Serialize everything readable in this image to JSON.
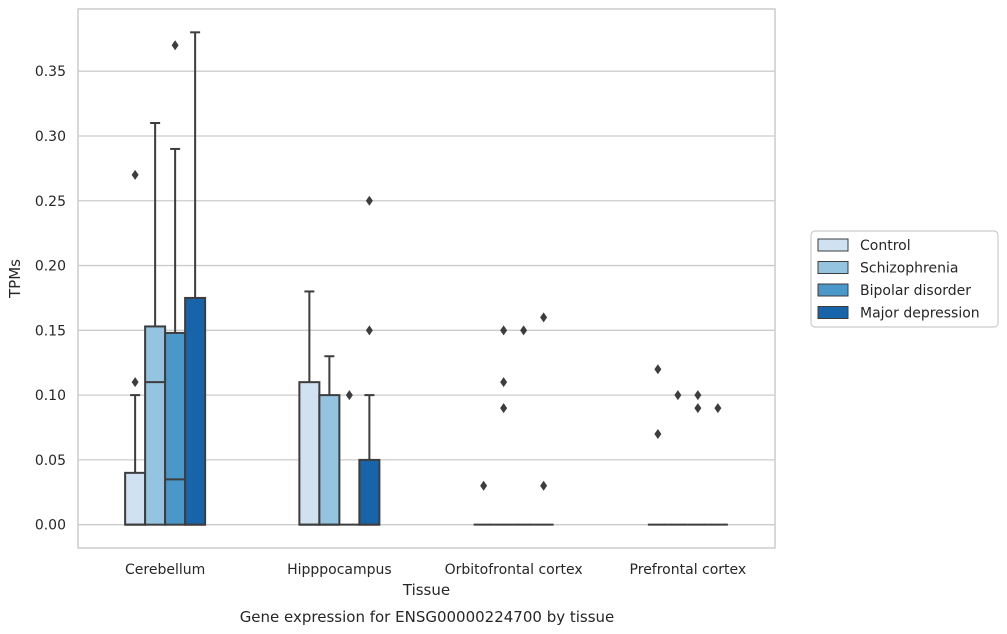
{
  "caption": "Gene expression for ENSG00000224700 by tissue",
  "chart_data": {
    "type": "box",
    "title": "",
    "xlabel": "Tissue",
    "ylabel": "TPMs",
    "ylim": [
      -0.018,
      0.398
    ],
    "yticks": [
      0.0,
      0.05,
      0.1,
      0.15,
      0.2,
      0.25,
      0.3,
      0.35
    ],
    "ytick_labels": [
      "0.00",
      "0.05",
      "0.10",
      "0.15",
      "0.20",
      "0.25",
      "0.30",
      "0.35"
    ],
    "grid": "horizontal",
    "legend_position": "right",
    "categories": [
      "Cerebellum",
      "Hipppocampus",
      "Orbitofrontal cortex",
      "Prefrontal cortex"
    ],
    "series": [
      {
        "name": "Control",
        "color": "#d0e1f2",
        "boxes": [
          {
            "q1": 0.0,
            "median": 0.0,
            "q3": 0.04,
            "whisker_low": 0.0,
            "whisker_high": 0.1,
            "outliers": [
              0.11,
              0.27
            ]
          },
          {
            "q1": 0.0,
            "median": 0.0,
            "q3": 0.11,
            "whisker_low": 0.0,
            "whisker_high": 0.18,
            "outliers": []
          },
          {
            "q1": 0.0,
            "median": 0.0,
            "q3": 0.0,
            "whisker_low": 0.0,
            "whisker_high": 0.0,
            "outliers": [
              0.03
            ]
          },
          {
            "q1": 0.0,
            "median": 0.0,
            "q3": 0.0,
            "whisker_low": 0.0,
            "whisker_high": 0.0,
            "outliers": [
              0.07,
              0.12
            ]
          }
        ]
      },
      {
        "name": "Schizophrenia",
        "color": "#94c4df",
        "boxes": [
          {
            "q1": 0.0,
            "median": 0.11,
            "q3": 0.153,
            "whisker_low": 0.0,
            "whisker_high": 0.31,
            "outliers": []
          },
          {
            "q1": 0.0,
            "median": 0.0,
            "q3": 0.1,
            "whisker_low": 0.0,
            "whisker_high": 0.13,
            "outliers": []
          },
          {
            "q1": 0.0,
            "median": 0.0,
            "q3": 0.0,
            "whisker_low": 0.0,
            "whisker_high": 0.0,
            "outliers": [
              0.09,
              0.11,
              0.15
            ]
          },
          {
            "q1": 0.0,
            "median": 0.0,
            "q3": 0.0,
            "whisker_low": 0.0,
            "whisker_high": 0.0,
            "outliers": [
              0.1
            ]
          }
        ]
      },
      {
        "name": "Bipolar disorder",
        "color": "#4a98c9",
        "boxes": [
          {
            "q1": 0.0,
            "median": 0.035,
            "q3": 0.148,
            "whisker_low": 0.0,
            "whisker_high": 0.29,
            "outliers": [
              0.37
            ]
          },
          {
            "q1": 0.0,
            "median": 0.0,
            "q3": 0.0,
            "whisker_low": 0.0,
            "whisker_high": 0.0,
            "outliers": [
              0.1
            ]
          },
          {
            "q1": 0.0,
            "median": 0.0,
            "q3": 0.0,
            "whisker_low": 0.0,
            "whisker_high": 0.0,
            "outliers": [
              0.15
            ]
          },
          {
            "q1": 0.0,
            "median": 0.0,
            "q3": 0.0,
            "whisker_low": 0.0,
            "whisker_high": 0.0,
            "outliers": [
              0.09,
              0.1
            ]
          }
        ]
      },
      {
        "name": "Major depression",
        "color": "#1764ab",
        "boxes": [
          {
            "q1": 0.0,
            "median": 0.0,
            "q3": 0.175,
            "whisker_low": 0.0,
            "whisker_high": 0.38,
            "outliers": []
          },
          {
            "q1": 0.0,
            "median": 0.0,
            "q3": 0.05,
            "whisker_low": 0.0,
            "whisker_high": 0.1,
            "outliers": [
              0.15,
              0.25
            ]
          },
          {
            "q1": 0.0,
            "median": 0.0,
            "q3": 0.0,
            "whisker_low": 0.0,
            "whisker_high": 0.0,
            "outliers": [
              0.03,
              0.16
            ]
          },
          {
            "q1": 0.0,
            "median": 0.0,
            "q3": 0.0,
            "whisker_low": 0.0,
            "whisker_high": 0.0,
            "outliers": [
              0.09
            ]
          }
        ]
      }
    ]
  }
}
